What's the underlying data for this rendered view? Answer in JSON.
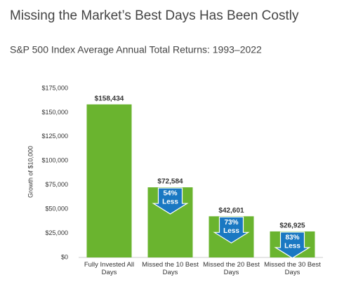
{
  "chart_data": {
    "type": "bar",
    "title": "Missing the Market’s Best Days Has Been Costly",
    "subtitle": "S&P 500 Index Average Annual Total Returns: 1993–2022",
    "y_label": "Growth of $10,000",
    "categories": [
      "Fully Invested All Days",
      "Missed the 10 Best Days",
      "Missed the 20 Best Days",
      "Missed the 30 Best Days"
    ],
    "values": [
      158434,
      72584,
      42601,
      26925
    ],
    "value_labels": [
      "$158,434",
      "$72,584",
      "$42,601",
      "$26,925"
    ],
    "color": "#6ab42f",
    "reduction_values": [
      null,
      54,
      73,
      83
    ],
    "reduction_labels": [
      null,
      "54%",
      "73%",
      "83%"
    ],
    "reduction_note": "Less",
    "reduction_color": "#1a78c2",
    "ylim": [
      0,
      175000
    ],
    "yticks": [
      {
        "value": 0,
        "label": "$0"
      },
      {
        "value": 25000,
        "label": "$25,000"
      },
      {
        "value": 50000,
        "label": "$50,000"
      },
      {
        "value": 75000,
        "label": "$75,000"
      },
      {
        "value": 100000,
        "label": "$100,000"
      },
      {
        "value": 125000,
        "label": "$125,000"
      },
      {
        "value": 150000,
        "label": "$150,000"
      },
      {
        "value": 175000,
        "label": "$175,000"
      }
    ],
    "grid": false
  }
}
